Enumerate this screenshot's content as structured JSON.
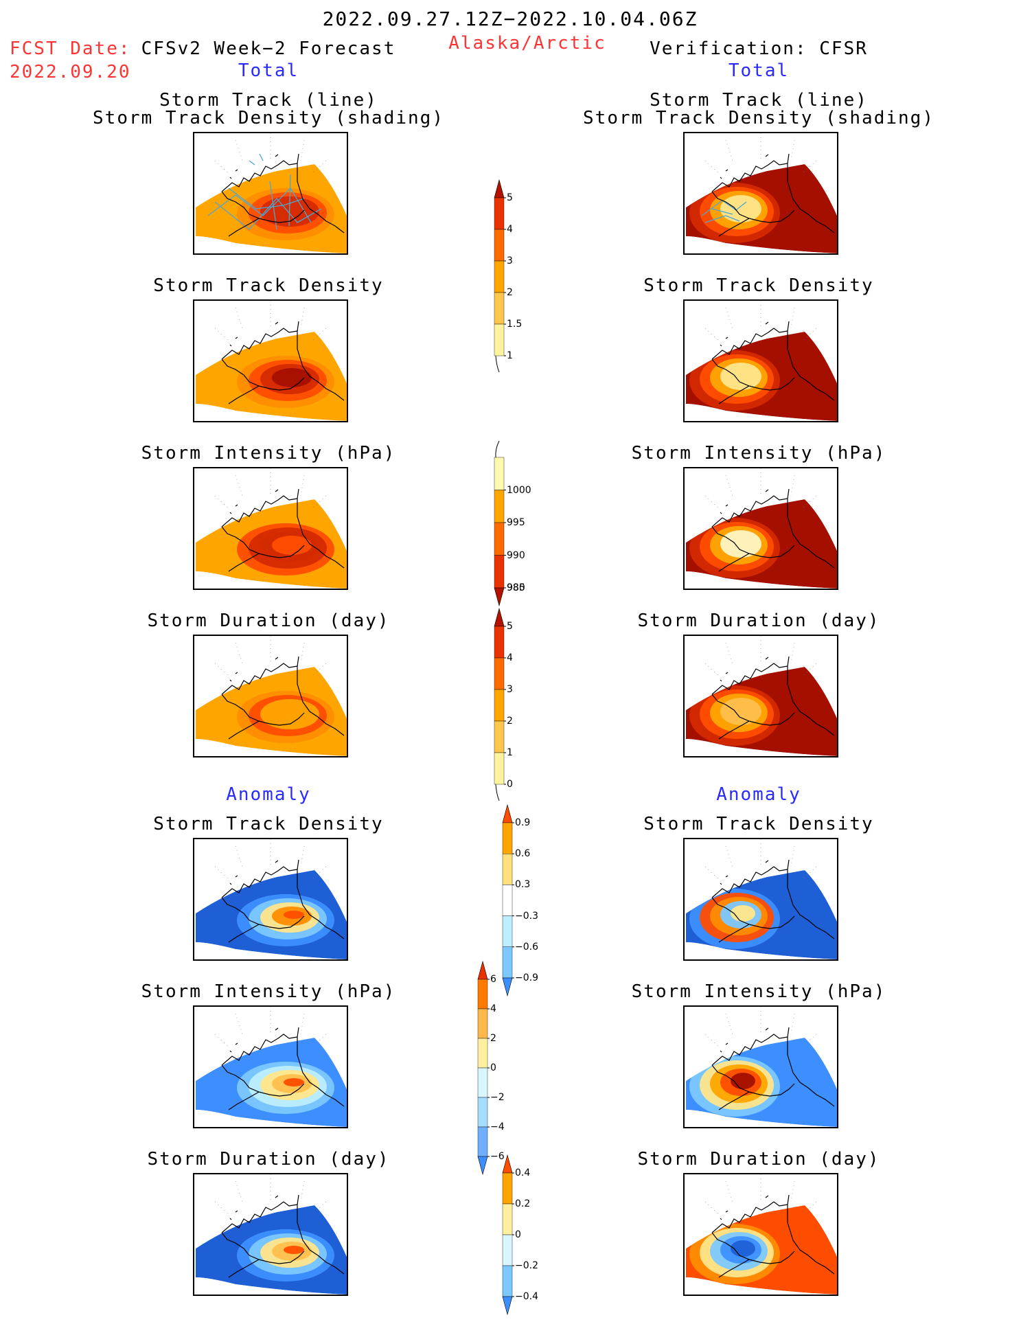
{
  "header": {
    "date_range": "2022.09.27.12Z−2022.10.04.06Z",
    "fcst_label": "FCST Date:",
    "fcst_date": "2022.09.20",
    "forecast_title": "CFSv2 Week−2 Forecast",
    "region": "Alaska/Arctic",
    "verification_title": "Verification: CFSR",
    "total_left": "Total",
    "total_right": "Total",
    "anomaly_left": "Anomaly",
    "anomaly_right": "Anomaly"
  },
  "panel_titles": {
    "track_line": "Storm Track (line)",
    "track_density_shading": "Storm Track Density (shading)",
    "track_density": "Storm Track Density",
    "intensity": "Storm Intensity (hPa)",
    "duration": "Storm Duration (day)"
  },
  "colorbars": {
    "total_density": {
      "labels": [
        "5",
        "4",
        "3",
        "2",
        "1.5",
        "1"
      ],
      "colors": [
        "#b31200",
        "#e83300",
        "#ff6a00",
        "#ffa500",
        "#ffc84d",
        "#fff3a0"
      ]
    },
    "total_intensity": {
      "labels": [
        "1000",
        "995",
        "990",
        "985",
        "980"
      ],
      "colors": [
        "#fff8b0",
        "#ffa500",
        "#ff6a00",
        "#e83300",
        "#b31200"
      ]
    },
    "total_duration": {
      "labels": [
        "5",
        "4",
        "3",
        "2",
        "1",
        "0"
      ],
      "colors": [
        "#b31200",
        "#e83300",
        "#ff6a00",
        "#ffa500",
        "#ffc84d",
        "#fff3a0"
      ]
    },
    "anom_density": {
      "labels": [
        "0.9",
        "0.6",
        "0.3",
        "−0.3",
        "−0.6",
        "−0.9"
      ],
      "colors": [
        "#ff4d00",
        "#ffa500",
        "#ffe07a",
        "#ffffff",
        "#bdeeff",
        "#7cc8ff",
        "#3d8fff"
      ]
    },
    "anom_intensity": {
      "labels": [
        "6",
        "4",
        "2",
        "0",
        "−2",
        "−4",
        "−6"
      ],
      "colors": [
        "#e83300",
        "#ff7a00",
        "#ffb84d",
        "#fff0a0",
        "#d9f6ff",
        "#a6dcff",
        "#6eb0ff",
        "#3d8fff"
      ]
    },
    "anom_duration": {
      "labels": [
        "0.4",
        "0.2",
        "0",
        "−0.2",
        "−0.4"
      ],
      "colors": [
        "#ff4d00",
        "#ffa500",
        "#fff0a0",
        "#d9f6ff",
        "#7cc8ff",
        "#3d8fff"
      ]
    }
  },
  "palette": {
    "coast": "#000000",
    "track_line": "#4aa6d8"
  }
}
